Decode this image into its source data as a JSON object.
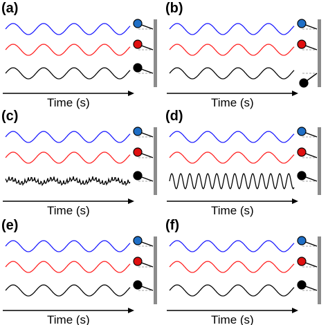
{
  "figure": {
    "panels": [
      {
        "label": "(a)",
        "x_label": "Time (s)",
        "bottom_wave": "same",
        "bottom_pendulum": "level",
        "bottom_color": "#000000"
      },
      {
        "label": "(b)",
        "x_label": "Time (s)",
        "bottom_wave": "same",
        "bottom_pendulum": "lowered",
        "bottom_color": "#000000"
      },
      {
        "label": "(c)",
        "x_label": "Time (s)",
        "bottom_wave": "noisy",
        "bottom_pendulum": "level",
        "bottom_color": "#000000"
      },
      {
        "label": "(d)",
        "x_label": "Time (s)",
        "bottom_wave": "high-frequency",
        "bottom_pendulum": "level",
        "bottom_color": "#000000"
      },
      {
        "label": "(e)",
        "x_label": "Time (s)",
        "bottom_wave": "same",
        "bottom_pendulum": "level",
        "bottom_color": "#000000"
      },
      {
        "label": "(f)",
        "x_label": "Time (s)",
        "bottom_wave": "same",
        "bottom_pendulum": "level",
        "bottom_color": "#000000"
      }
    ],
    "colors": {
      "wave_1": "#1a1aff",
      "wave_2": "#ff2020",
      "wave_3": "#000000",
      "ball_1": "#1f6fc6",
      "ball_2": "#e01010",
      "ball_3": "#000000",
      "wall": "#8c8c8c",
      "dashed": "#a0a0a0"
    }
  }
}
